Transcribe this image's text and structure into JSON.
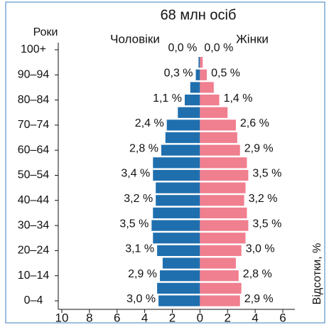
{
  "chart_data": {
    "type": "population_pyramid",
    "title": "68 млн осіб",
    "y_label": "Роки",
    "x_label": "Відсотки, %",
    "categories": [
      "0–4",
      null,
      "10–14",
      null,
      "20–24",
      null,
      "30–34",
      null,
      "40–44",
      null,
      "50–54",
      null,
      "60–64",
      null,
      "70–74",
      null,
      "80–84",
      null,
      "90–94",
      null,
      "100+"
    ],
    "series": [
      {
        "name": "Чоловіки",
        "color": "#1f6fae",
        "values": [
          3.0,
          3.1,
          2.9,
          2.7,
          3.1,
          3.4,
          3.5,
          3.4,
          3.2,
          3.2,
          3.4,
          3.4,
          2.8,
          2.5,
          2.4,
          1.6,
          1.1,
          0.7,
          0.3,
          0.1,
          0.0
        ],
        "value_labels": [
          "3,0 %",
          null,
          "2,9 %",
          null,
          "3,1 %",
          null,
          "3,5 %",
          null,
          "3,2 %",
          null,
          "3,4 %",
          null,
          "2,8 %",
          null,
          "2,4 %",
          null,
          "1,1 %",
          null,
          "0,3 %",
          null,
          "0,0 %"
        ]
      },
      {
        "name": "Жінки",
        "color": "#f07f8f",
        "values": [
          2.9,
          3.0,
          2.8,
          2.6,
          3.0,
          3.3,
          3.5,
          3.4,
          3.2,
          3.3,
          3.5,
          3.4,
          2.9,
          2.7,
          2.6,
          2.0,
          1.4,
          1.0,
          0.5,
          0.2,
          0.0
        ],
        "value_labels": [
          "2,9 %",
          null,
          "2,8 %",
          null,
          "3,0 %",
          null,
          "3,5 %",
          null,
          "3,2 %",
          null,
          "3,5 %",
          null,
          "2,9 %",
          null,
          "2,6 %",
          null,
          "1,4 %",
          null,
          "0,5 %",
          null,
          "0,0 %"
        ]
      }
    ],
    "xlim": [
      -10,
      6
    ],
    "xticks": [
      {
        "value": -10,
        "label": "10"
      },
      {
        "value": -8,
        "label": "8"
      },
      {
        "value": -6,
        "label": "6"
      },
      {
        "value": -4,
        "label": "4"
      },
      {
        "value": -2,
        "label": "2"
      },
      0,
      2,
      4,
      6
    ]
  }
}
